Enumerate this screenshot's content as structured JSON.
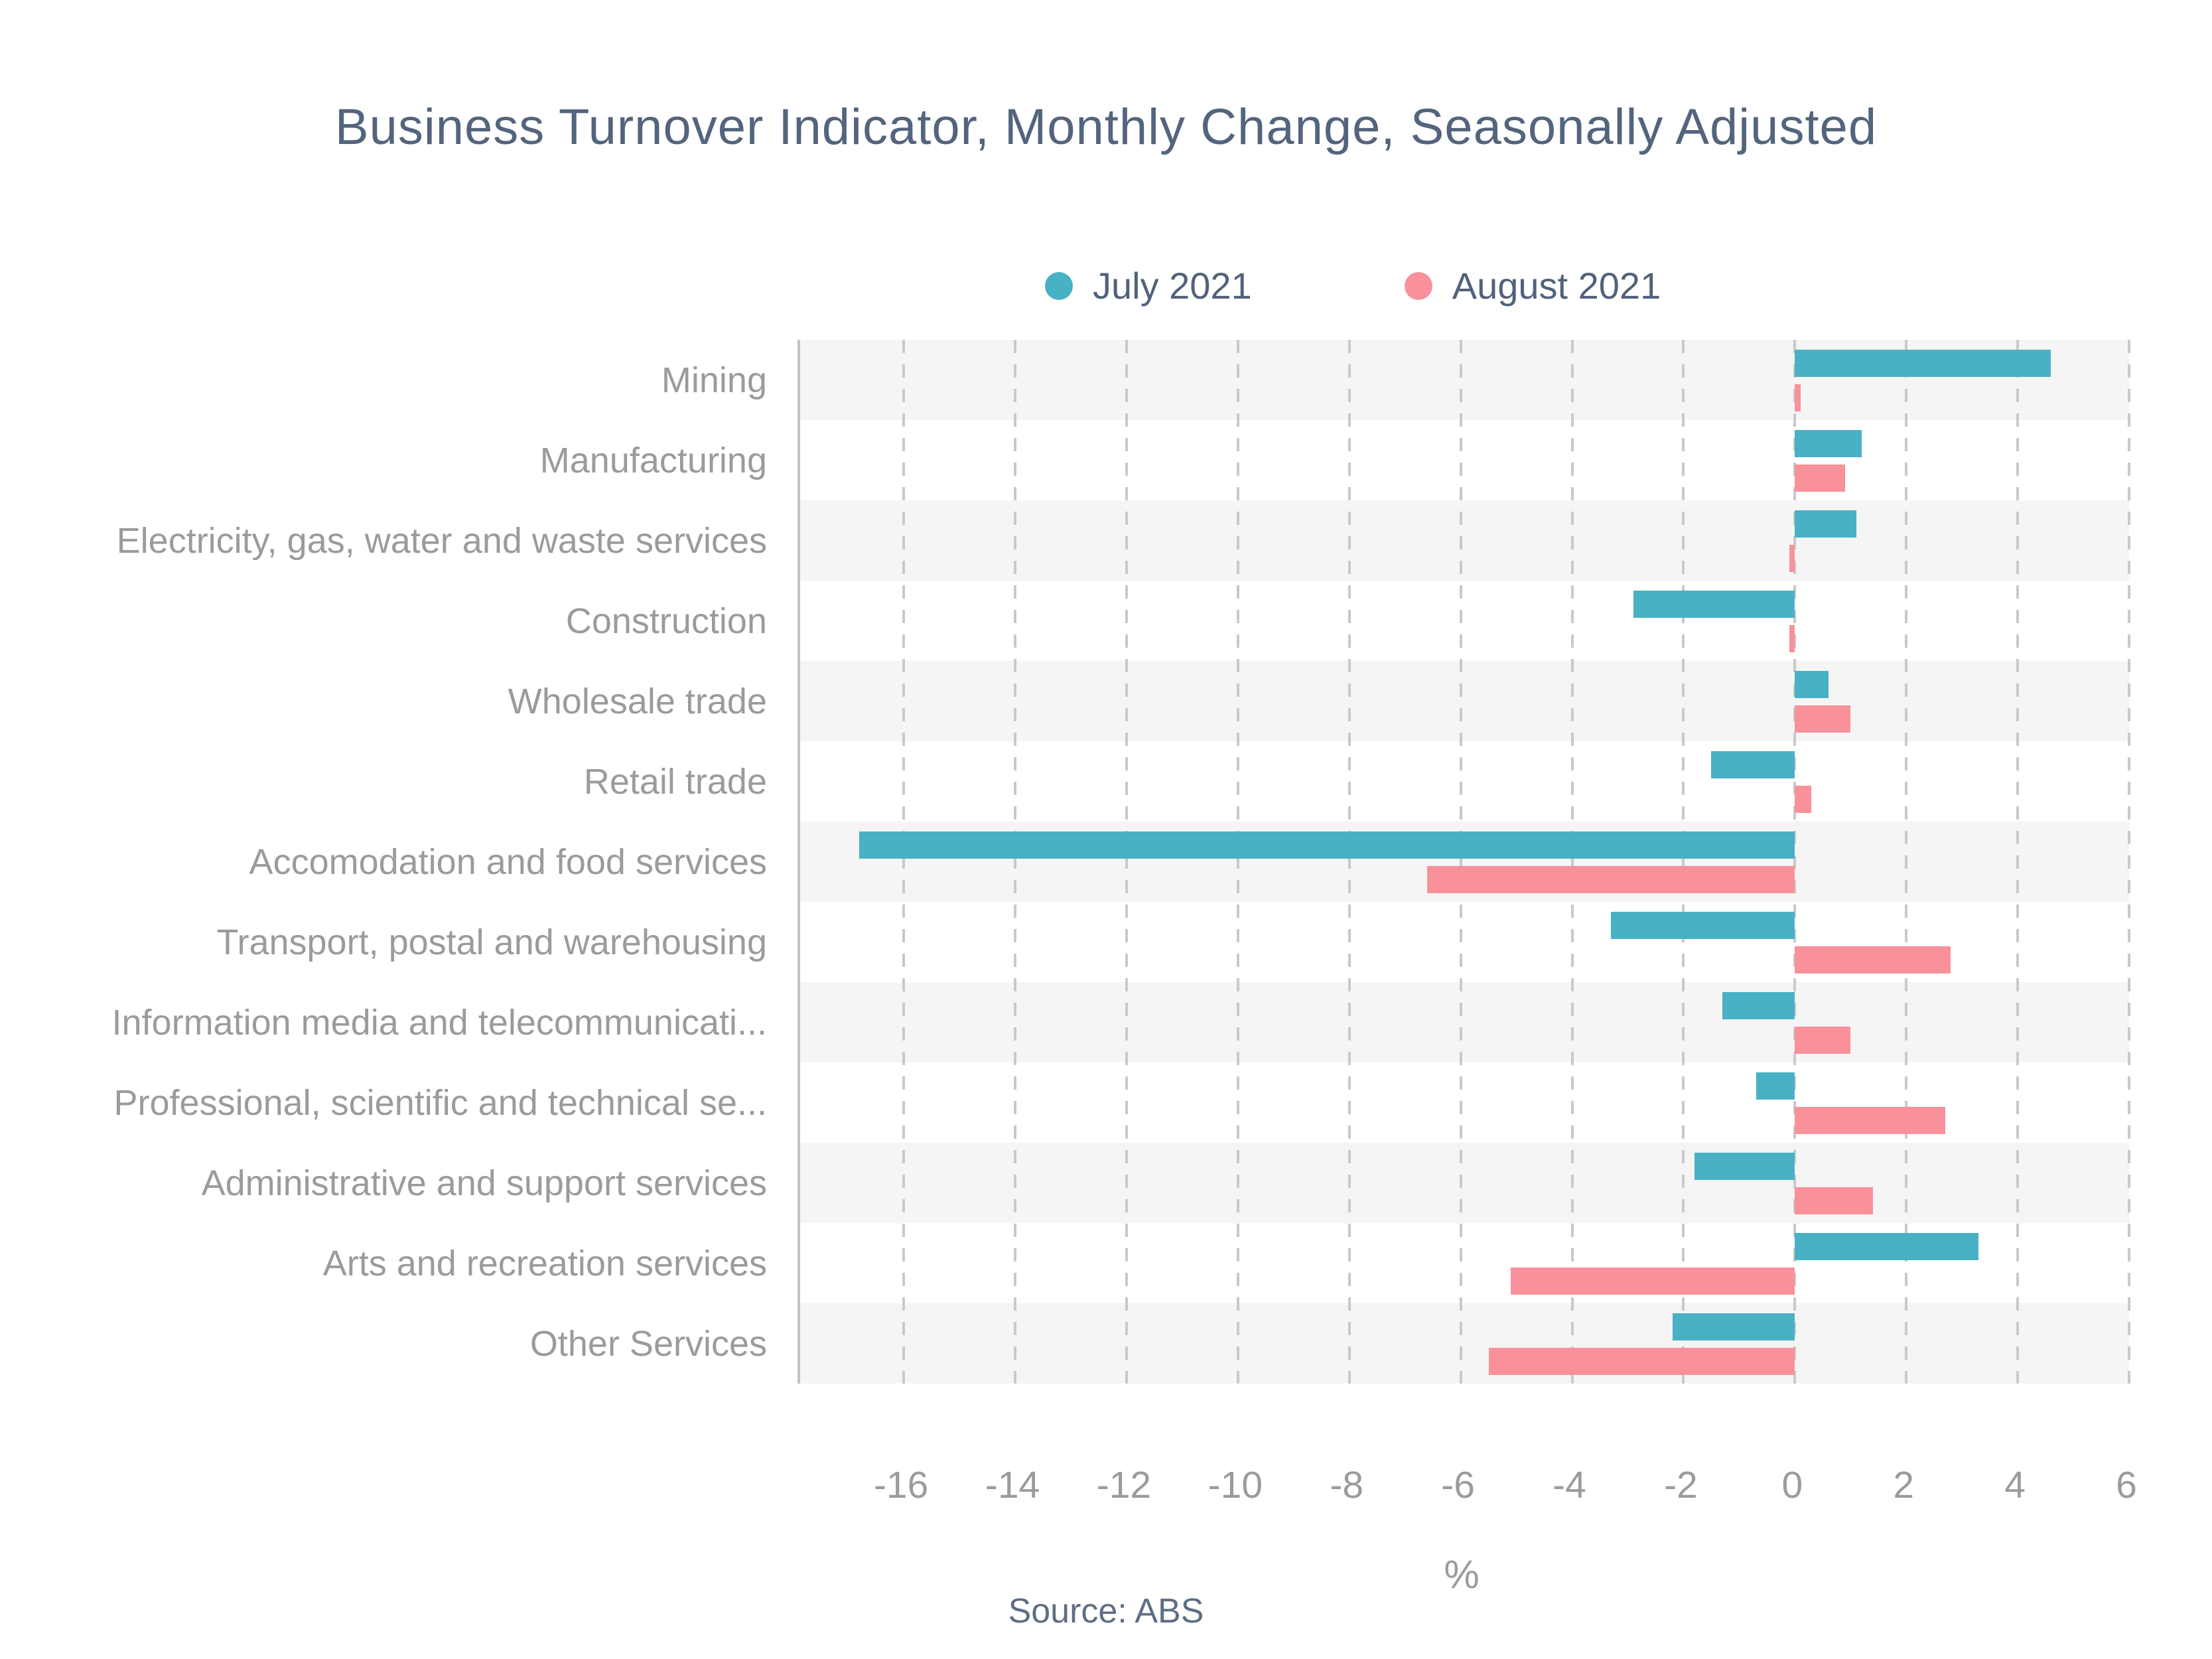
{
  "page": {
    "title": "Business Turnover Indicator, Monthly Change, Seasonally Adjusted",
    "source": "Source: ABS"
  },
  "legend": {
    "items": [
      {
        "label": "July 2021",
        "color": "#48b1c3"
      },
      {
        "label": "August 2021",
        "color": "#f8919a"
      }
    ]
  },
  "chart_data": {
    "type": "bar",
    "orientation": "horizontal",
    "title": "Business Turnover Indicator, Monthly Change, Seasonally Adjusted",
    "xlabel": "%",
    "categories": [
      "Mining",
      "Manufacturing",
      "Electricity, gas, water and waste services",
      "Construction",
      "Wholesale trade",
      "Retail trade",
      "Accomodation and food services",
      "Transport, postal and warehousing",
      "Information media and telecommunicati...",
      "Professional, scientific and technical se...",
      "Administrative and support services",
      "Arts and recreation services",
      "Other Services"
    ],
    "series": [
      {
        "name": "July 2021",
        "color": "#48b1c3",
        "values": [
          4.6,
          1.2,
          1.1,
          -2.9,
          0.6,
          -1.5,
          -16.8,
          -3.3,
          -1.3,
          -0.7,
          -1.8,
          3.3,
          -2.2
        ]
      },
      {
        "name": "August 2021",
        "color": "#f8919a",
        "values": [
          0.1,
          0.9,
          -0.1,
          -0.1,
          1.0,
          0.3,
          -6.6,
          2.8,
          1.0,
          2.7,
          1.4,
          -5.1,
          -5.5
        ]
      }
    ],
    "x_ticks": [
      -16,
      -14,
      -12,
      -10,
      -8,
      -6,
      -4,
      -2,
      0,
      2,
      4,
      6
    ],
    "xlim": [
      -17.86,
      6
    ],
    "grid": "vertical-dashed",
    "legend_position": "top-center",
    "row_band_colors": [
      "#f5f5f6",
      "#ffffff"
    ],
    "unit": "%"
  }
}
